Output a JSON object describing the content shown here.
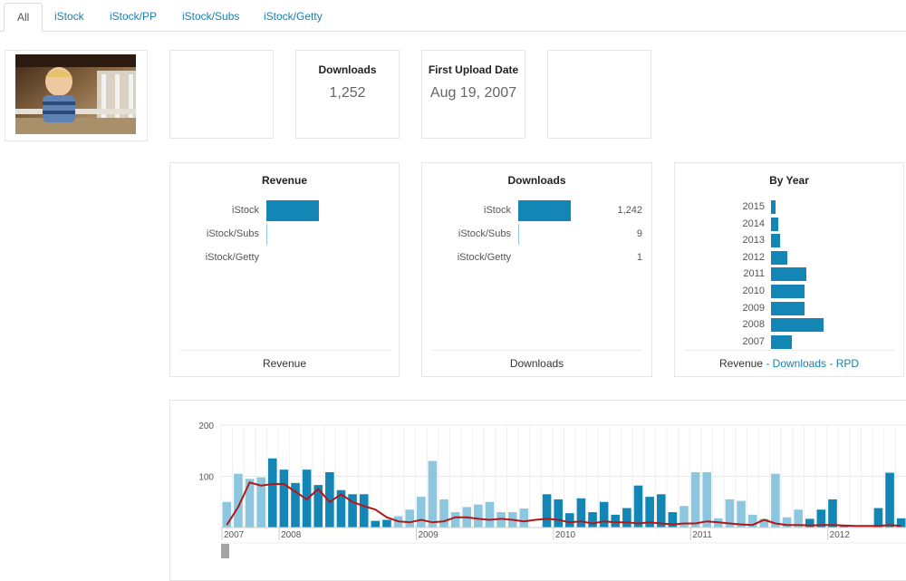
{
  "tabs": [
    {
      "label": "All",
      "active": true
    },
    {
      "label": "iStock"
    },
    {
      "label": "iStock/PP"
    },
    {
      "label": "iStock/Subs"
    },
    {
      "label": "iStock/Getty"
    }
  ],
  "stats": {
    "downloads_title": "Downloads",
    "downloads_value": "1,252",
    "first_upload_title": "First Upload Date",
    "first_upload_value": "Aug 19, 2007"
  },
  "revenue_panel": {
    "title": "Revenue",
    "rows": [
      {
        "label": "iStock",
        "fraction": 1.0
      },
      {
        "label": "iStock/Subs",
        "fraction": 0.02
      },
      {
        "label": "iStock/Getty",
        "fraction": 0.0
      }
    ],
    "footer": "Revenue"
  },
  "downloads_panel": {
    "title": "Downloads",
    "rows": [
      {
        "label": "iStock",
        "value": "1,242",
        "count": 1242
      },
      {
        "label": "iStock/Subs",
        "value": "9",
        "count": 9
      },
      {
        "label": "iStock/Getty",
        "value": "1",
        "count": 1
      }
    ],
    "footer": "Downloads"
  },
  "by_year_panel": {
    "title": "By Year",
    "years": [
      {
        "year": "2015",
        "value": 6
      },
      {
        "year": "2014",
        "value": 10
      },
      {
        "year": "2013",
        "value": 12
      },
      {
        "year": "2012",
        "value": 22
      },
      {
        "year": "2011",
        "value": 48
      },
      {
        "year": "2010",
        "value": 45
      },
      {
        "year": "2009",
        "value": 45
      },
      {
        "year": "2008",
        "value": 71
      },
      {
        "year": "2007",
        "value": 28
      }
    ],
    "footer_revenue": "Revenue",
    "footer_sep1": " - ",
    "footer_downloads": "Downloads",
    "footer_sep2": " - ",
    "footer_rpd": "RPD"
  },
  "chart_data": {
    "type": "bar",
    "ylim": [
      0,
      200
    ],
    "yticks": [
      "200",
      "100"
    ],
    "ytick_values": [
      200,
      100
    ],
    "xticks": [
      "2007",
      "2008",
      "2009",
      "2010",
      "2011",
      "2012"
    ],
    "grid": true,
    "colors": {
      "dark": "#1486b5",
      "light": "#8cc7df",
      "line": "#b01818"
    },
    "series": [
      {
        "values": [
          50,
          105,
          95,
          98,
          135,
          113,
          87,
          113,
          83,
          108,
          73,
          65,
          65,
          13,
          15,
          22,
          35,
          60,
          130,
          55,
          30,
          40,
          45,
          50,
          30,
          30,
          37,
          0,
          65,
          55,
          28,
          57,
          30,
          50,
          25,
          38,
          82,
          60,
          65,
          30,
          42,
          108,
          108,
          18,
          55,
          52,
          25,
          17,
          105,
          20,
          35,
          17,
          35,
          55,
          5,
          0,
          0,
          38,
          107,
          18
        ],
        "shade": [
          "l",
          "l",
          "l",
          "l",
          "d",
          "d",
          "d",
          "d",
          "d",
          "d",
          "d",
          "d",
          "d",
          "d",
          "d",
          "l",
          "l",
          "l",
          "l",
          "l",
          "l",
          "l",
          "l",
          "l",
          "l",
          "l",
          "l",
          "l",
          "d",
          "d",
          "d",
          "d",
          "d",
          "d",
          "d",
          "d",
          "d",
          "d",
          "d",
          "d",
          "l",
          "l",
          "l",
          "l",
          "l",
          "l",
          "l",
          "l",
          "l",
          "l",
          "l",
          "d",
          "d",
          "d",
          "d",
          "d",
          "d",
          "d",
          "d",
          "d"
        ]
      },
      {
        "values": [
          5,
          40,
          88,
          82,
          85,
          85,
          70,
          55,
          75,
          50,
          65,
          50,
          42,
          35,
          20,
          12,
          10,
          15,
          10,
          12,
          20,
          20,
          17,
          15,
          17,
          15,
          12,
          15,
          17,
          15,
          10,
          12,
          8,
          12,
          10,
          10,
          8,
          10,
          8,
          6,
          8,
          8,
          12,
          10,
          8,
          6,
          5,
          15,
          8,
          5,
          5,
          4,
          5,
          5,
          4,
          3,
          3,
          3,
          5,
          3
        ]
      }
    ]
  }
}
